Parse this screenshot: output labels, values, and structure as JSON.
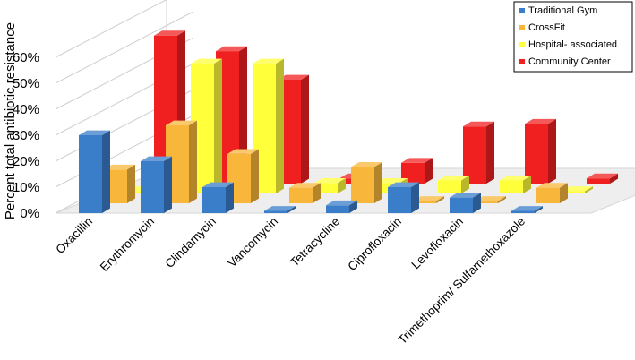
{
  "chart_data": {
    "type": "bar",
    "title": "",
    "xlabel": "",
    "ylabel": "Percent total antibiotic resistance",
    "ylim": [
      0,
      0.6
    ],
    "yticks": [
      "0%",
      "10%",
      "20%",
      "30%",
      "40%",
      "50%",
      "60%"
    ],
    "ytick_values": [
      0,
      0.1,
      0.2,
      0.3,
      0.4,
      0.5,
      0.6
    ],
    "categories": [
      "Oxacillin",
      "Erythromycin",
      "Clindamycin",
      "Vancomycin",
      "Tetracycline",
      "Ciprofloxacin",
      "Levofloxacin",
      "Trimethoprim/ Sulfamethoxazole"
    ],
    "series": [
      {
        "name": "Traditional Gym",
        "color": "#3a7dc9",
        "values": [
          0.3,
          0.2,
          0.1,
          0.0,
          0.03,
          0.1,
          0.06,
          0.0
        ]
      },
      {
        "name": "CrossFit",
        "color": "#f8b73a",
        "values": [
          0.13,
          0.3,
          0.19,
          0.06,
          0.14,
          0.0,
          0.0,
          0.06
        ]
      },
      {
        "name": "Hospital- associated",
        "color": "#ffff3a",
        "values": [
          0.0,
          0.5,
          0.5,
          0.04,
          0.04,
          0.05,
          0.05,
          0.0
        ]
      },
      {
        "name": "Community Center",
        "color": "#f02020",
        "values": [
          0.57,
          0.51,
          0.4,
          0.02,
          0.08,
          0.22,
          0.23,
          0.02
        ]
      }
    ],
    "legend_position": "top-right",
    "grid": true,
    "projection": "3d"
  }
}
